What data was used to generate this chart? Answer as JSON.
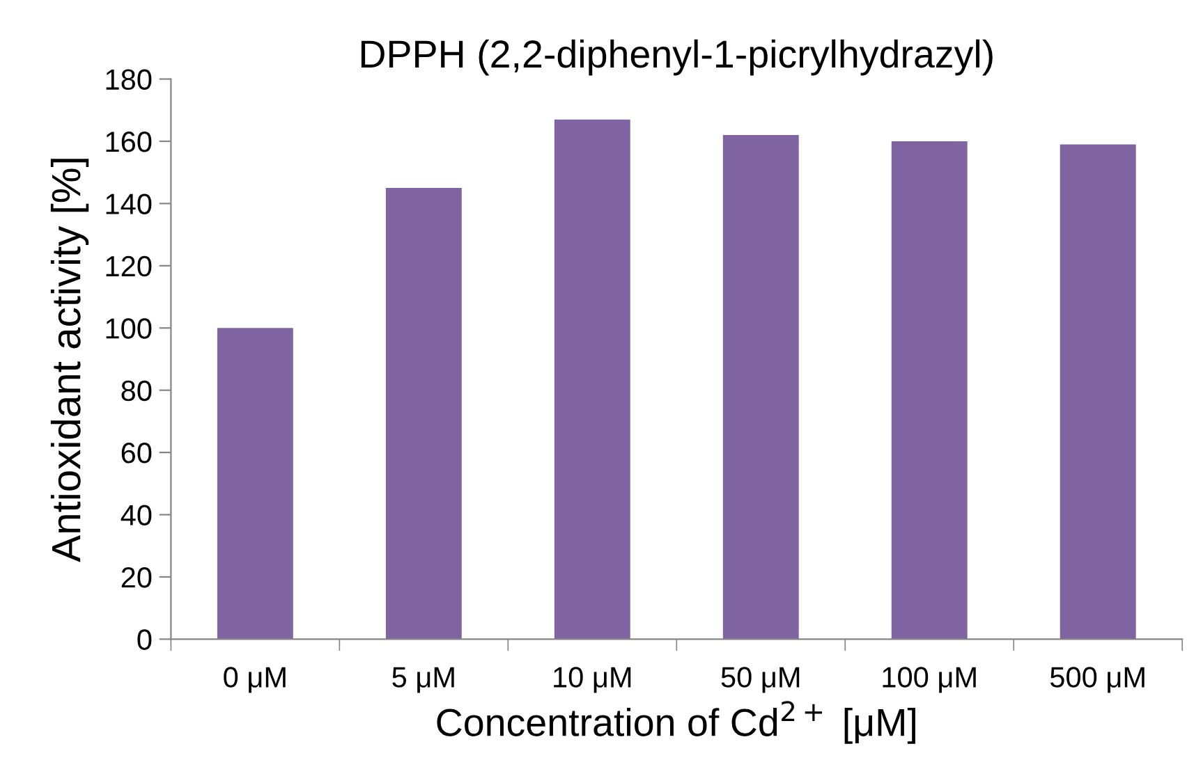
{
  "chart_data": {
    "type": "bar",
    "title": "DPPH (2,2-diphenyl-1-picrylhydrazyl)",
    "xlabel": "Concentration of Cd$^{2+}$ [μM]",
    "ylabel": "Antioxidant activity [%]",
    "categories": [
      "0 μM",
      "5 μM",
      "10 μM",
      "50 μM",
      "100 μM",
      "500 μM"
    ],
    "values": [
      100,
      145,
      167,
      162,
      160,
      159
    ],
    "color": "#8064a2",
    "ylim": [
      0,
      180
    ],
    "yticks": [
      0,
      20,
      40,
      60,
      80,
      100,
      120,
      140,
      160,
      180
    ],
    "grid": false,
    "legend": false
  }
}
